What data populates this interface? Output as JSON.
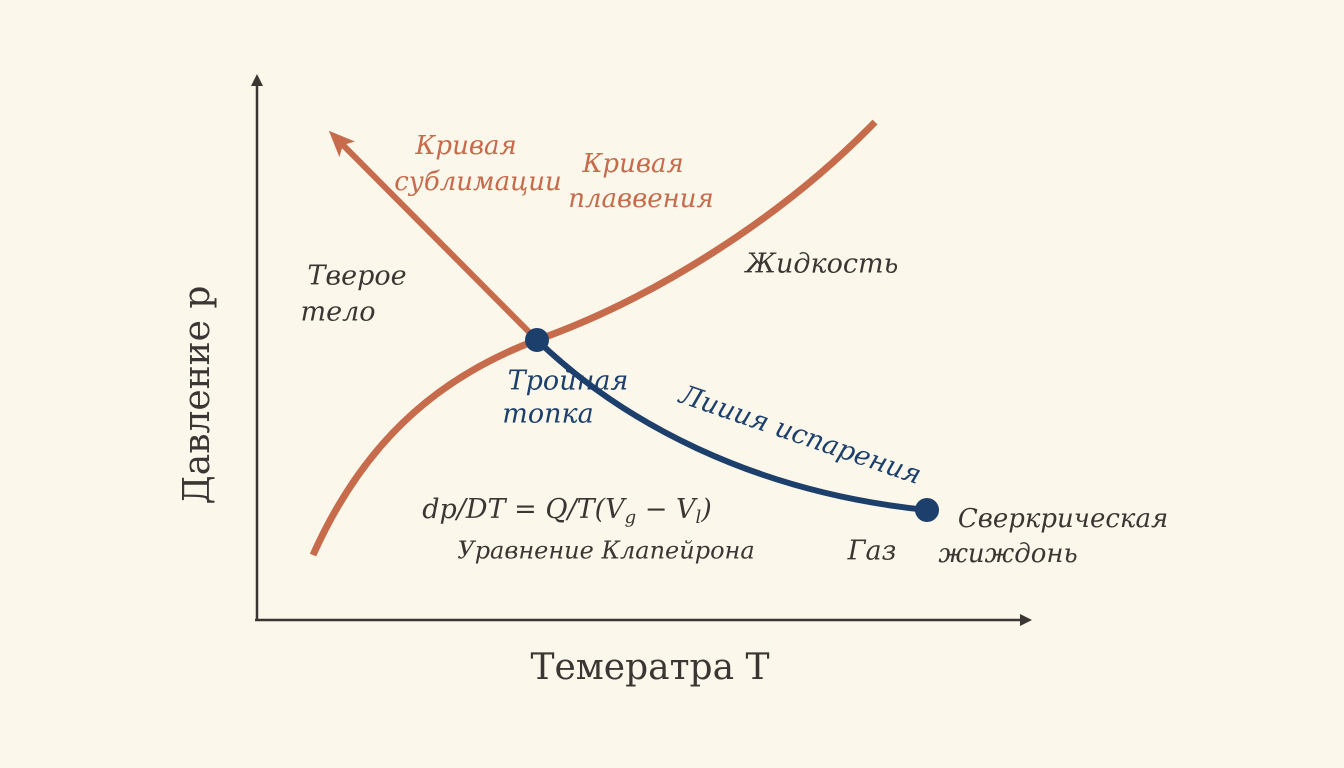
{
  "axes": {
    "y_label": "Давление p",
    "x_label": "Темератра T"
  },
  "curves": {
    "sublimation": [
      "Кривая",
      "сублимации"
    ],
    "melting": [
      "Кривая",
      "плаввения"
    ],
    "vaporization": "Лииия испарения"
  },
  "regions": {
    "solid": [
      "Тверое",
      "тело"
    ],
    "liquid": "Жидкость",
    "gas": "Газ"
  },
  "points": {
    "triple": [
      "Тройная",
      "топка"
    ],
    "critical": [
      "Сверкрическая",
      "жиждонь"
    ]
  },
  "equation": {
    "main": "dp/DT = Q/T(V",
    "sub1": "g",
    "mid": " − V",
    "sub2": "l",
    "end": ")",
    "caption": "Уравнение Клапейрона"
  }
}
